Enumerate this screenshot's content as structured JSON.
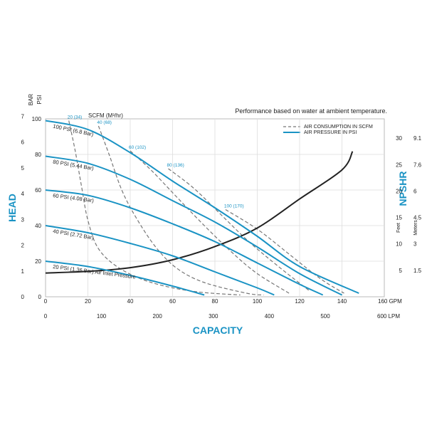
{
  "note": "Performance based on water at ambient temperature.",
  "scfm_header": "SCFM (M³/hr)",
  "axes": {
    "head": "HEAD",
    "capacity": "CAPACITY",
    "npshr": "NPSHR",
    "bar": "BAR",
    "psi": "PSI",
    "gpm_unit": "160 GPM",
    "lpm_unit": "600 LPM",
    "feet": "Feet",
    "meters": "Meters"
  },
  "legend": {
    "air_consumption": "AIR CONSUMPTION IN SCFM",
    "air_pressure": "AIR PRESSURE IN PSI"
  },
  "colors": {
    "pressure_curve": "#1a93c4",
    "consumption_curve": "#777777",
    "npshr_curve": "#222222",
    "accent_text": "#1a93c4",
    "grid": "#dddddd"
  },
  "chart_data": {
    "type": "line",
    "x_unit": "GPM",
    "x_ticks_gpm": [
      "0",
      "20",
      "40",
      "60",
      "80",
      "100",
      "120",
      "140"
    ],
    "x_ticks_lpm": [
      "0",
      "100",
      "200",
      "300",
      "400",
      "500"
    ],
    "xlim": [
      0,
      160
    ],
    "ylim_psi": [
      0,
      100
    ],
    "y_ticks_psi": [
      "0",
      "20",
      "40",
      "60",
      "80",
      "100"
    ],
    "y_ticks_bar": [
      "0",
      "1",
      "2",
      "3",
      "4",
      "5",
      "6",
      "7"
    ],
    "npshr_ticks_feet": [
      "5",
      "10",
      "15",
      "20",
      "25",
      "30"
    ],
    "npshr_ticks_meters": [
      "1.5",
      "3",
      "4.5",
      "6",
      "7.6",
      "9.1"
    ],
    "grid": true,
    "legend_position": "top-right",
    "pressure_series": [
      {
        "name": "100 PSI (6.8 Bar)",
        "points": [
          [
            0,
            99
          ],
          [
            20,
            94
          ],
          [
            40,
            81
          ],
          [
            60,
            65
          ],
          [
            80,
            50
          ],
          [
            100,
            34
          ],
          [
            120,
            17
          ],
          [
            148,
            2
          ]
        ]
      },
      {
        "name": "80 PSI (5.44 Bar)",
        "points": [
          [
            0,
            79
          ],
          [
            20,
            75
          ],
          [
            40,
            66
          ],
          [
            60,
            54
          ],
          [
            80,
            42
          ],
          [
            100,
            28
          ],
          [
            120,
            13
          ],
          [
            140,
            1
          ]
        ]
      },
      {
        "name": "60 PSI (4.08 Bar)",
        "points": [
          [
            0,
            60
          ],
          [
            20,
            57
          ],
          [
            40,
            50
          ],
          [
            60,
            41
          ],
          [
            80,
            31
          ],
          [
            100,
            19
          ],
          [
            120,
            7
          ],
          [
            131,
            1
          ]
        ]
      },
      {
        "name": "40 PSI (2.72 Bar)",
        "points": [
          [
            0,
            40
          ],
          [
            20,
            36
          ],
          [
            40,
            30
          ],
          [
            60,
            23
          ],
          [
            80,
            14
          ],
          [
            100,
            5
          ],
          [
            108,
            1
          ]
        ]
      },
      {
        "name": "20 PSI (1.36 Bar) Air Inlet Pressure",
        "points": [
          [
            0,
            20
          ],
          [
            20,
            17
          ],
          [
            40,
            12
          ],
          [
            60,
            6
          ],
          [
            75,
            1
          ]
        ]
      }
    ],
    "consumption_series": [
      {
        "name": "20 (34)",
        "points": [
          [
            11,
            99
          ],
          [
            14,
            82
          ],
          [
            17,
            62
          ],
          [
            20,
            43
          ],
          [
            25,
            27
          ],
          [
            35,
            16
          ],
          [
            50,
            8
          ],
          [
            70,
            3
          ],
          [
            92,
            1
          ]
        ]
      },
      {
        "name": "40 (68)",
        "points": [
          [
            25,
            96
          ],
          [
            30,
            80
          ],
          [
            36,
            60
          ],
          [
            43,
            44
          ],
          [
            52,
            28
          ],
          [
            62,
            16
          ],
          [
            75,
            8
          ],
          [
            95,
            2
          ],
          [
            103,
            1
          ]
        ]
      },
      {
        "name": "60 (102)",
        "points": [
          [
            40,
            82
          ],
          [
            50,
            71
          ],
          [
            62,
            56
          ],
          [
            75,
            40
          ],
          [
            88,
            25
          ],
          [
            100,
            13
          ],
          [
            115,
            2
          ]
        ]
      },
      {
        "name": "80 (136)",
        "points": [
          [
            58,
            72
          ],
          [
            70,
            61
          ],
          [
            83,
            46
          ],
          [
            96,
            31
          ],
          [
            110,
            17
          ],
          [
            125,
            3
          ]
        ]
      },
      {
        "name": "100 (170)",
        "points": [
          [
            85,
            49
          ],
          [
            100,
            38
          ],
          [
            115,
            24
          ],
          [
            130,
            10
          ],
          [
            141,
            2
          ]
        ]
      }
    ],
    "npshr_series": {
      "name": "NPSHR",
      "points_feet": [
        [
          0,
          4.5
        ],
        [
          20,
          4.8
        ],
        [
          40,
          5.5
        ],
        [
          60,
          7
        ],
        [
          80,
          9.5
        ],
        [
          100,
          13
        ],
        [
          120,
          18.5
        ],
        [
          140,
          24
        ],
        [
          145,
          27.5
        ]
      ]
    }
  }
}
